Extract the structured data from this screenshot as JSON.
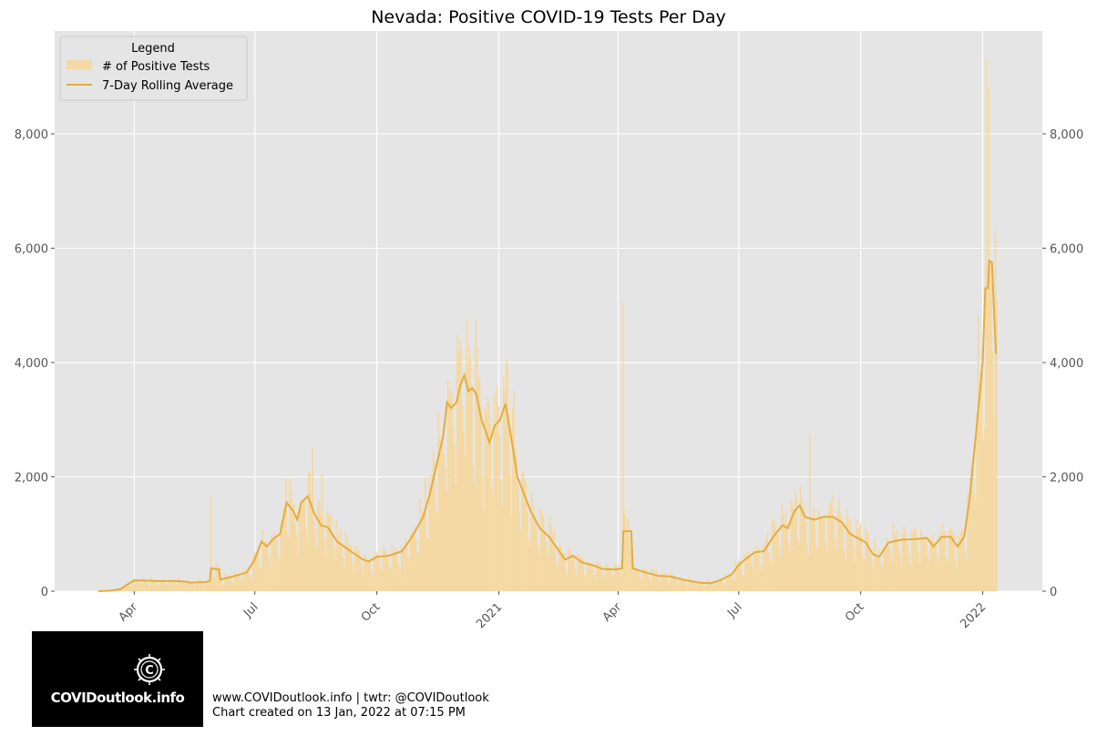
{
  "chart_data": {
    "type": "bar",
    "title": "Nevada: Positive COVID-19 Tests Per Day",
    "xlabel": "",
    "ylabel": "",
    "x_range": [
      "2020-02-01",
      "2022-02-15"
    ],
    "ylim": [
      0,
      9800
    ],
    "y_ticks": [
      0,
      2000,
      4000,
      6000,
      8000
    ],
    "y_tick_labels": [
      "0",
      "2,000",
      "4,000",
      "6,000",
      "8,000"
    ],
    "x_ticks": [
      {
        "date": "2020-04-01",
        "label": "Apr"
      },
      {
        "date": "2020-07-01",
        "label": "Jul"
      },
      {
        "date": "2020-10-01",
        "label": "Oct"
      },
      {
        "date": "2021-01-01",
        "label": "2021"
      },
      {
        "date": "2021-04-01",
        "label": "Apr"
      },
      {
        "date": "2021-07-01",
        "label": "Jul"
      },
      {
        "date": "2021-10-01",
        "label": "Oct"
      },
      {
        "date": "2022-01-01",
        "label": "2022"
      }
    ],
    "grid": true,
    "legend": {
      "title": "Legend",
      "placement": "top-left",
      "entries": [
        "# of Positive Tests",
        "7-Day Rolling Average"
      ]
    },
    "colors": {
      "bars": "#f5d9a4",
      "line": "#e3ad3f",
      "plot_bg": "#e5e5e5",
      "grid": "#ffffff"
    },
    "series": [
      {
        "name": "# of Positive Tests",
        "type": "bar",
        "start_date": "2020-03-05",
        "end_date": "2022-01-11"
      },
      {
        "name": "7-Day Rolling Average",
        "type": "line",
        "points": [
          [
            "2020-03-05",
            0
          ],
          [
            "2020-03-15",
            10
          ],
          [
            "2020-03-22",
            40
          ],
          [
            "2020-03-27",
            120
          ],
          [
            "2020-04-01",
            190
          ],
          [
            "2020-04-10",
            185
          ],
          [
            "2020-04-20",
            175
          ],
          [
            "2020-05-01",
            180
          ],
          [
            "2020-05-10",
            165
          ],
          [
            "2020-05-13",
            150
          ],
          [
            "2020-05-25",
            160
          ],
          [
            "2020-05-28",
            180
          ],
          [
            "2020-05-29",
            400
          ],
          [
            "2020-06-04",
            380
          ],
          [
            "2020-06-05",
            200
          ],
          [
            "2020-06-15",
            260
          ],
          [
            "2020-06-25",
            330
          ],
          [
            "2020-07-01",
            560
          ],
          [
            "2020-07-06",
            870
          ],
          [
            "2020-07-10",
            780
          ],
          [
            "2020-07-15",
            920
          ],
          [
            "2020-07-20",
            1000
          ],
          [
            "2020-07-25",
            1550
          ],
          [
            "2020-07-30",
            1400
          ],
          [
            "2020-08-02",
            1250
          ],
          [
            "2020-08-05",
            1550
          ],
          [
            "2020-08-10",
            1660
          ],
          [
            "2020-08-15",
            1350
          ],
          [
            "2020-08-20",
            1150
          ],
          [
            "2020-08-25",
            1120
          ],
          [
            "2020-09-01",
            870
          ],
          [
            "2020-09-10",
            720
          ],
          [
            "2020-09-20",
            560
          ],
          [
            "2020-09-25",
            520
          ],
          [
            "2020-10-01",
            600
          ],
          [
            "2020-10-10",
            620
          ],
          [
            "2020-10-20",
            700
          ],
          [
            "2020-10-25",
            860
          ],
          [
            "2020-10-30",
            1050
          ],
          [
            "2020-11-05",
            1300
          ],
          [
            "2020-11-10",
            1700
          ],
          [
            "2020-11-15",
            2200
          ],
          [
            "2020-11-20",
            2700
          ],
          [
            "2020-11-23",
            3300
          ],
          [
            "2020-11-26",
            3200
          ],
          [
            "2020-11-30",
            3300
          ],
          [
            "2020-12-03",
            3600
          ],
          [
            "2020-12-06",
            3780
          ],
          [
            "2020-12-09",
            3500
          ],
          [
            "2020-12-12",
            3550
          ],
          [
            "2020-12-15",
            3450
          ],
          [
            "2020-12-19",
            3000
          ],
          [
            "2020-12-25",
            2600
          ],
          [
            "2020-12-29",
            2900
          ],
          [
            "2021-01-02",
            3000
          ],
          [
            "2021-01-06",
            3280
          ],
          [
            "2021-01-11",
            2600
          ],
          [
            "2021-01-15",
            2000
          ],
          [
            "2021-01-20",
            1700
          ],
          [
            "2021-01-25",
            1400
          ],
          [
            "2021-02-01",
            1100
          ],
          [
            "2021-02-08",
            950
          ],
          [
            "2021-02-15",
            720
          ],
          [
            "2021-02-20",
            550
          ],
          [
            "2021-02-26",
            620
          ],
          [
            "2021-03-05",
            500
          ],
          [
            "2021-03-12",
            460
          ],
          [
            "2021-03-20",
            390
          ],
          [
            "2021-03-30",
            380
          ],
          [
            "2021-04-04",
            400
          ],
          [
            "2021-04-05",
            1050
          ],
          [
            "2021-04-11",
            1050
          ],
          [
            "2021-04-12",
            400
          ],
          [
            "2021-04-20",
            340
          ],
          [
            "2021-05-01",
            270
          ],
          [
            "2021-05-10",
            260
          ],
          [
            "2021-05-20",
            200
          ],
          [
            "2021-06-01",
            150
          ],
          [
            "2021-06-10",
            140
          ],
          [
            "2021-06-18",
            200
          ],
          [
            "2021-06-26",
            300
          ],
          [
            "2021-07-01",
            460
          ],
          [
            "2021-07-06",
            560
          ],
          [
            "2021-07-13",
            680
          ],
          [
            "2021-07-20",
            700
          ],
          [
            "2021-07-27",
            950
          ],
          [
            "2021-08-03",
            1150
          ],
          [
            "2021-08-07",
            1100
          ],
          [
            "2021-08-12",
            1400
          ],
          [
            "2021-08-16",
            1500
          ],
          [
            "2021-08-20",
            1300
          ],
          [
            "2021-08-27",
            1250
          ],
          [
            "2021-09-03",
            1300
          ],
          [
            "2021-09-10",
            1300
          ],
          [
            "2021-09-17",
            1200
          ],
          [
            "2021-09-23",
            1000
          ],
          [
            "2021-10-01",
            900
          ],
          [
            "2021-10-05",
            850
          ],
          [
            "2021-10-10",
            650
          ],
          [
            "2021-10-15",
            600
          ],
          [
            "2021-10-22",
            850
          ],
          [
            "2021-11-01",
            900
          ],
          [
            "2021-11-10",
            910
          ],
          [
            "2021-11-20",
            930
          ],
          [
            "2021-11-25",
            780
          ],
          [
            "2021-12-01",
            950
          ],
          [
            "2021-12-08",
            950
          ],
          [
            "2021-12-13",
            780
          ],
          [
            "2021-12-18",
            950
          ],
          [
            "2021-12-22",
            1600
          ],
          [
            "2021-12-28",
            3000
          ],
          [
            "2022-01-01",
            4000
          ],
          [
            "2022-01-03",
            5300
          ],
          [
            "2022-01-05",
            5300
          ],
          [
            "2022-01-06",
            5780
          ],
          [
            "2022-01-08",
            5750
          ],
          [
            "2022-01-11",
            4150
          ]
        ]
      }
    ],
    "spikes": [
      [
        "2020-05-28",
        1650
      ],
      [
        "2020-07-24",
        1970
      ],
      [
        "2020-08-13",
        2500
      ],
      [
        "2020-08-20",
        2050
      ],
      [
        "2020-11-06",
        2000
      ],
      [
        "2020-11-23",
        3700
      ],
      [
        "2020-12-02",
        4400
      ],
      [
        "2020-12-09",
        4300
      ],
      [
        "2021-01-06",
        4050
      ],
      [
        "2021-01-12",
        3500
      ],
      [
        "2021-04-04",
        5050
      ],
      [
        "2021-08-23",
        2750
      ],
      [
        "2021-12-28",
        4800
      ],
      [
        "2022-01-03",
        9300
      ],
      [
        "2022-01-05",
        8800
      ],
      [
        "2022-01-06",
        5700
      ]
    ]
  },
  "footer": {
    "line1": "www.COVIDoutlook.info | twtr: @COVIDoutlook",
    "line2": "Chart created on 13 Jan, 2022 at 07:15 PM"
  },
  "logo": {
    "text": "COVIDoutlook.info",
    "icon": "virus-c-icon"
  }
}
